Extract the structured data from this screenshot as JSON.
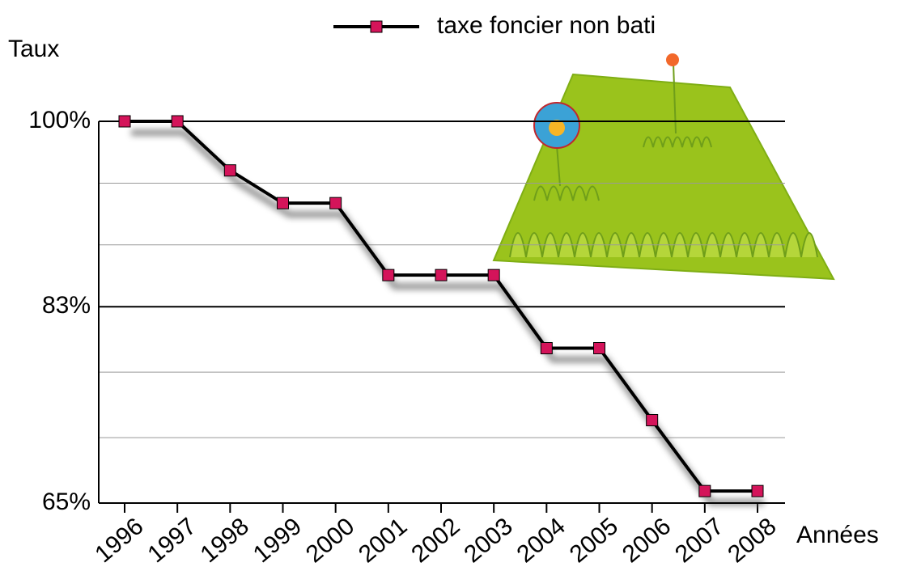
{
  "chart_data": {
    "type": "line",
    "y_label": "Taux",
    "x_label": "Années",
    "categories": [
      "1996",
      "1997",
      "1998",
      "1999",
      "2000",
      "2001",
      "2002",
      "2003",
      "2004",
      "2005",
      "2006",
      "2007",
      "2008"
    ],
    "series": [
      {
        "name": "taxe foncier non bati",
        "color": "#000000",
        "marker_color": "#d4145a",
        "values": [
          100,
          100,
          95.5,
          92.5,
          92.5,
          85.9,
          85.9,
          85.9,
          79.2,
          79.2,
          72.6,
          66.1,
          66.1
        ]
      }
    ],
    "ylim": [
      65,
      100
    ],
    "yticks": [
      {
        "value": 65,
        "label": "65%"
      },
      {
        "value": 83,
        "label": "83%"
      },
      {
        "value": 100,
        "label": "100%"
      }
    ],
    "minor_yticks": [
      71,
      77,
      88.67,
      94.33
    ],
    "grid": true
  }
}
